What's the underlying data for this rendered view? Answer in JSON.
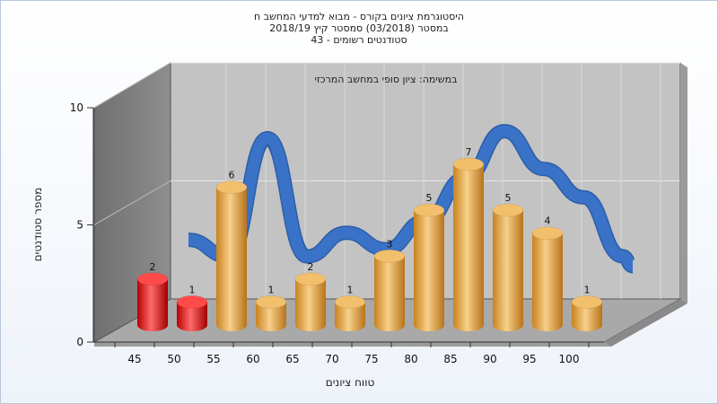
{
  "chart_data": {
    "type": "bar",
    "title_lines": [
      "היסטוגרמת ציונים בקורס - מבוא למדעי המחשב ח",
      "במסטר (03/2018) סמסטר קיץ 2018/19",
      "סטודנטים רשומים - 43"
    ],
    "subtitle": "במשימה: ציון סופי במחשב המרכזי",
    "xlabel": "טווח ציונים",
    "ylabel": "מספר סטודנטים",
    "categories": [
      "45",
      "50",
      "55",
      "60",
      "65",
      "70",
      "75",
      "80",
      "85",
      "90",
      "95",
      "100"
    ],
    "values": [
      2,
      1,
      6,
      1,
      2,
      1,
      3,
      5,
      7,
      5,
      4,
      1
    ],
    "bar_colors": [
      "#e11a1a",
      "#e11a1a",
      "#e8a74a",
      "#e8a74a",
      "#e8a74a",
      "#e8a74a",
      "#e8a74a",
      "#e8a74a",
      "#e8a74a",
      "#e8a74a",
      "#e8a74a",
      "#e8a74a"
    ],
    "trend_series": [
      2.2,
      1.5,
      6.5,
      1.5,
      2.5,
      1.8,
      3.0,
      4.8,
      6.8,
      5.2,
      4.0,
      1.5
    ],
    "trend_color": "#3a72c7",
    "y_ticks": [
      0,
      5,
      10
    ],
    "ylim": [
      0,
      10
    ],
    "grid": true
  }
}
